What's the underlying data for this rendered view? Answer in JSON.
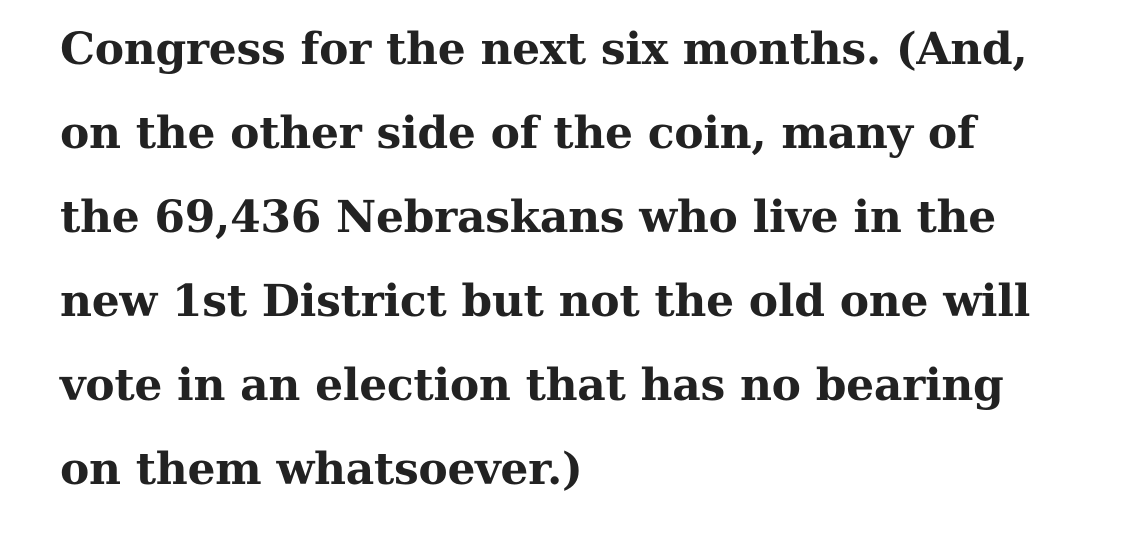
{
  "colors": {
    "background": "#ffffff",
    "text": "#222222"
  },
  "paragraph": {
    "lines": [
      "Congress for the next six months. (And,",
      "on the other side of the coin, many of",
      "the 69,436 Nebraskans who live in the",
      "new 1st District but not the old one will",
      "vote in an election that has no bearing",
      "on them whatsoever.)"
    ]
  }
}
